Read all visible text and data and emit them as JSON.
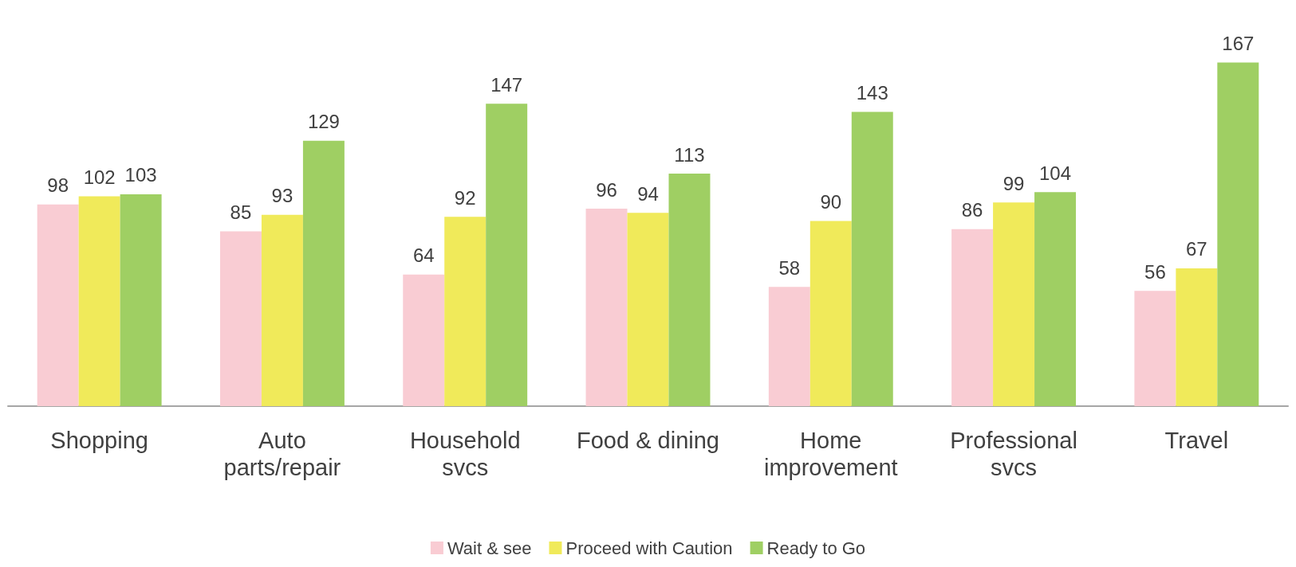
{
  "chart_data": {
    "type": "bar",
    "categories": [
      "Shopping",
      "Auto parts/repair",
      "Household svcs",
      "Food & dining",
      "Home improvement",
      "Professional svcs",
      "Travel"
    ],
    "series": [
      {
        "name": "Wait & see",
        "color": "#f9ccd3",
        "values": [
          98,
          85,
          64,
          96,
          58,
          86,
          56
        ]
      },
      {
        "name": "Proceed with Caution",
        "color": "#f0ea5a",
        "values": [
          102,
          93,
          92,
          94,
          90,
          99,
          67
        ]
      },
      {
        "name": "Ready to Go",
        "color": "#9fcf63",
        "values": [
          103,
          129,
          147,
          113,
          143,
          104,
          167
        ]
      }
    ],
    "data_labels": true,
    "legend": "bottom"
  }
}
